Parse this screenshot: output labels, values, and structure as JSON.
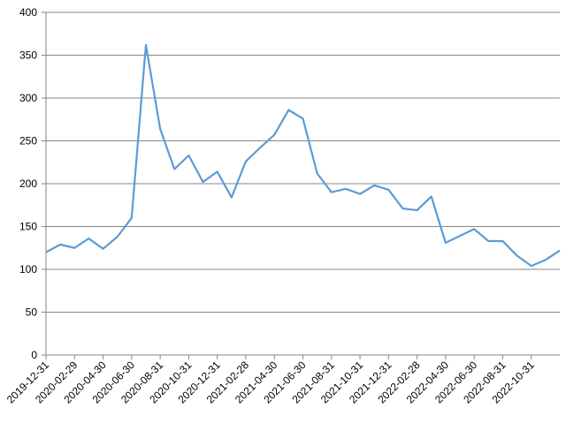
{
  "chart_data": {
    "type": "line",
    "categories": [
      "2019-12-31",
      null,
      "2020-02-29",
      null,
      "2020-04-30",
      null,
      "2020-06-30",
      null,
      "2020-08-31",
      null,
      "2020-10-31",
      null,
      "2020-12-31",
      null,
      "2021-02-28",
      null,
      "2021-04-30",
      null,
      "2021-06-30",
      null,
      "2021-08-31",
      null,
      "2021-10-31",
      null,
      "2021-12-31",
      null,
      "2022-02-28",
      null,
      "2022-04-30",
      null,
      "2022-06-30",
      null,
      "2022-08-31",
      null,
      "2022-10-31",
      null,
      null
    ],
    "series": [
      {
        "color": "#5b9bd5",
        "values": [
          120,
          129,
          125,
          136,
          124,
          138,
          160,
          362,
          264,
          217,
          233,
          202,
          214,
          184,
          226,
          242,
          257,
          286,
          276,
          212,
          190,
          194,
          188,
          198,
          193,
          171,
          169,
          185,
          131,
          139,
          147,
          133,
          133,
          116,
          104,
          111,
          122
        ]
      }
    ],
    "ylim": [
      0,
      400
    ],
    "yticks": [
      0,
      50,
      100,
      150,
      200,
      250,
      300,
      350,
      400
    ],
    "grid": true
  }
}
